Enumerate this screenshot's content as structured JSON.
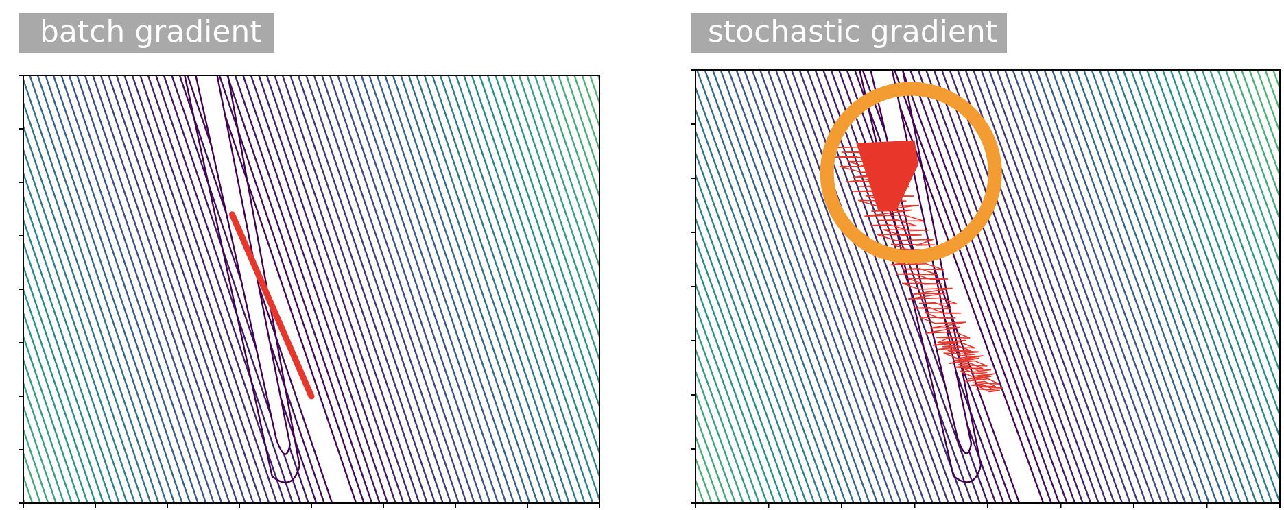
{
  "chart_data": [
    {
      "type": "contour",
      "title": "batch gradient",
      "colormap": [
        "#440154",
        "#3b528b",
        "#21918c",
        "#5ec962",
        "#fde725"
      ],
      "contour_levels": 70,
      "xlim": [
        0,
        8
      ],
      "ylim": [
        0,
        8
      ],
      "x_tick_count": 9,
      "y_tick_count": 9,
      "tick_labels_visible": false,
      "minimum_valley": {
        "x_top": 2.35,
        "x_bottom": 4.55,
        "y_top": 8,
        "y_bottom": 0
      },
      "path": {
        "color": "#e8362b",
        "style": "smooth",
        "points": [
          [
            2.9,
            5.4
          ],
          [
            3.45,
            3.7
          ],
          [
            4.0,
            2.0
          ]
        ]
      }
    },
    {
      "type": "contour",
      "title": "stochastic gradient",
      "colormap": [
        "#440154",
        "#3b528b",
        "#21918c",
        "#5ec962",
        "#fde725"
      ],
      "contour_levels": 70,
      "xlim": [
        0,
        8
      ],
      "ylim": [
        0,
        8
      ],
      "x_tick_count": 9,
      "y_tick_count": 9,
      "tick_labels_visible": false,
      "minimum_valley": {
        "x_top": 2.35,
        "x_bottom": 4.7,
        "y_top": 8,
        "y_bottom": 0
      },
      "path": {
        "color": "#e8362b",
        "style": "noisy",
        "points": [
          [
            2.25,
            6.6
          ],
          [
            2.9,
            4.8
          ],
          [
            3.5,
            3.0
          ],
          [
            4.05,
            2.05
          ]
        ]
      },
      "highlight_circle": {
        "color": "#f39c32",
        "cx": 2.95,
        "cy": 6.1,
        "r": 1.15
      }
    }
  ]
}
